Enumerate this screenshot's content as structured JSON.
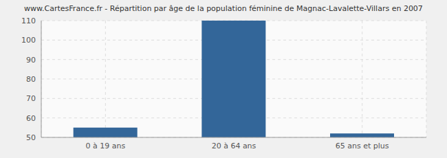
{
  "chart_data": {
    "type": "bar",
    "title": "www.CartesFrance.fr - Répartition par âge de la population féminine de Magnac-Lavalette-Villars en 2007",
    "categories": [
      "0 à 19 ans",
      "20 à 64 ans",
      "65 ans et plus"
    ],
    "values": [
      55,
      110,
      52
    ],
    "color": "#336699",
    "ylim": [
      50,
      110
    ],
    "yticks": [
      50,
      60,
      70,
      80,
      90,
      100,
      110
    ],
    "grid": true
  }
}
